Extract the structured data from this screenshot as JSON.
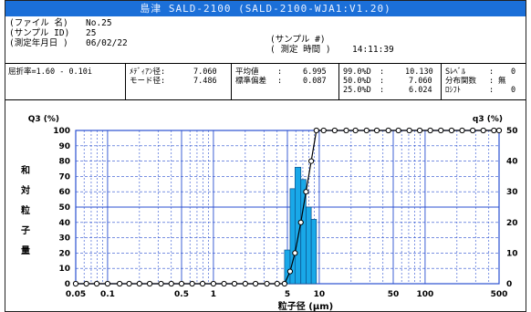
{
  "window": {
    "title": "島津  SALD-2100   (SALD-2100-WJA1:V1.20)"
  },
  "info": {
    "file_label": "(ファイル 名)",
    "file_value": "No.25",
    "sample_id_label": "(サンプル ID)",
    "sample_id_value": "25",
    "date_label": "(測定年月日 )",
    "date_value": "06/02/22",
    "sample_no_label": "(サンプル #)",
    "sample_no_value": "",
    "time_label": "( 測定 時間 )",
    "time_value": "14:11:39"
  },
  "stats": {
    "refractive_index": "屈折率=1.60 - 0.10i",
    "median_label": "ﾒﾃﾞｨｱﾝ径:",
    "median_value": "7.060",
    "mode_label": "モード径:",
    "mode_value": "7.486",
    "mean_label": "平均値",
    "mean_value": "6.995",
    "std_label": "標準偏差",
    "std_value": "0.087",
    "p99_label": "99.0%D",
    "p99_value": "10.130",
    "p50_label": "50.0%D",
    "p50_value": "7.060",
    "p25_label": "25.0%D",
    "p25_value": "6.024",
    "slevel_label": "Sﾚﾍﾞﾙ",
    "slevel_value": "0",
    "dist_label": "分布関数",
    "dist_value": "無",
    "shift_label": "ﾛｼﾌﾄ",
    "shift_value": "0"
  },
  "chart_data": {
    "type": "bar",
    "xscale": "log",
    "xlim": [
      0.05,
      500
    ],
    "x_ticks": [
      0.05,
      0.1,
      0.5,
      1,
      5,
      10,
      50,
      100,
      500
    ],
    "x_tick_labels": [
      "0.05",
      "0.1",
      "0.5",
      "1",
      "5",
      "10",
      "50",
      "100",
      "500"
    ],
    "xlabel": "粒子径 (μm)",
    "ylabel_left_title": "Q3 (%)",
    "ylabel_left_chars": [
      "和",
      "対",
      "粒",
      "子",
      "量"
    ],
    "ylabel_right_title": "q3 (%)",
    "ylim_left": [
      0,
      100
    ],
    "ylim_right": [
      0,
      50
    ],
    "left_ticks": [
      0,
      10,
      20,
      30,
      40,
      50,
      60,
      70,
      80,
      90,
      100
    ],
    "right_ticks": [
      0,
      10,
      20,
      30,
      40,
      50
    ],
    "colors": {
      "bar": "#19a8e8",
      "grid": "#2a4fd0",
      "curve": "#000000"
    },
    "series": [
      {
        "name": "q3",
        "axis": "right",
        "x": [
          5.0,
          5.6,
          6.3,
          7.1,
          7.9,
          8.9
        ],
        "x_edges": [
          4.7,
          5.3,
          5.9,
          6.7,
          7.5,
          8.4,
          9.4
        ],
        "values": [
          11,
          31,
          38,
          34,
          25,
          21
        ]
      },
      {
        "name": "Q3",
        "axis": "left",
        "x": [
          0.05,
          0.063,
          0.079,
          0.1,
          0.13,
          0.16,
          0.2,
          0.25,
          0.32,
          0.4,
          0.5,
          0.63,
          0.79,
          1.0,
          1.26,
          1.58,
          2.0,
          2.5,
          3.2,
          4.0,
          4.7,
          5.3,
          5.9,
          6.7,
          7.5,
          8.4,
          9.4,
          11,
          14,
          18,
          22,
          28,
          35,
          45,
          56,
          71,
          89,
          112,
          141,
          178,
          224,
          282,
          355,
          447,
          500
        ],
        "values": [
          0,
          0,
          0,
          0,
          0,
          0,
          0,
          0,
          0,
          0,
          0,
          0,
          0,
          0,
          0,
          0,
          0,
          0,
          0,
          0,
          0,
          8,
          20,
          40,
          60,
          80,
          100,
          100,
          100,
          100,
          100,
          100,
          100,
          100,
          100,
          100,
          100,
          100,
          100,
          100,
          100,
          100,
          100,
          100,
          100
        ]
      }
    ]
  }
}
